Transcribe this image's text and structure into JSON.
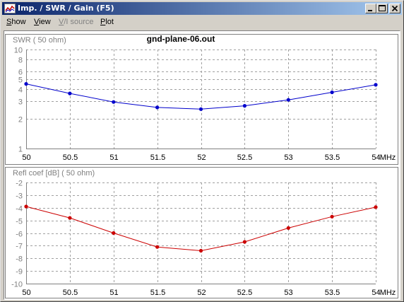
{
  "window": {
    "title": "Imp. / SWR / Gain   (F5)"
  },
  "menu": [
    {
      "label": "Show",
      "mnemonic": "S",
      "rest": "how",
      "disabled": false
    },
    {
      "label": "View",
      "mnemonic": "V",
      "rest": "iew",
      "disabled": false
    },
    {
      "label": "V/I source",
      "mnemonic": "V",
      "rest": "/I source",
      "disabled": true
    },
    {
      "label": "Plot",
      "mnemonic": "P",
      "rest": "lot",
      "disabled": false
    }
  ],
  "file_title": "gnd-plane-06.out",
  "colors": {
    "swr_line": "#0000cc",
    "refl_line": "#cc0000",
    "grid": "#a0a0a0",
    "axis_text": "#808080"
  },
  "chart_data": [
    {
      "type": "line",
      "ylabel": "SWR ( 50 ohm)",
      "xunit": "MHz",
      "yscale": "log",
      "ylim": [
        1,
        10
      ],
      "yticks": [
        1,
        2,
        3,
        4,
        5,
        6,
        8,
        10
      ],
      "grid": true,
      "x": [
        50,
        50.5,
        51,
        51.5,
        52,
        52.5,
        53,
        53.5,
        54
      ],
      "xticks": [
        "50",
        "50.5",
        "51",
        "51.5",
        "52",
        "52.5",
        "53",
        "53.5",
        "54"
      ],
      "series": [
        {
          "values": [
            4.5,
            3.6,
            2.95,
            2.6,
            2.5,
            2.7,
            3.1,
            3.7,
            4.4
          ]
        }
      ]
    },
    {
      "type": "line",
      "ylabel": "Refl coef [dB] ( 50 ohm)",
      "xunit": "MHz",
      "ylim": [
        -10,
        -2
      ],
      "yticks": [
        -2,
        -3,
        -4,
        -5,
        -6,
        -7,
        -8,
        -9,
        -10
      ],
      "grid": true,
      "x": [
        50,
        50.5,
        51,
        51.5,
        52,
        52.5,
        53,
        53.5,
        54
      ],
      "xticks": [
        "50",
        "50.5",
        "51",
        "51.5",
        "52",
        "52.5",
        "53",
        "53.5",
        "54"
      ],
      "series": [
        {
          "values": [
            -3.9,
            -4.8,
            -6.0,
            -7.1,
            -7.4,
            -6.7,
            -5.6,
            -4.7,
            -3.95
          ]
        }
      ]
    }
  ]
}
